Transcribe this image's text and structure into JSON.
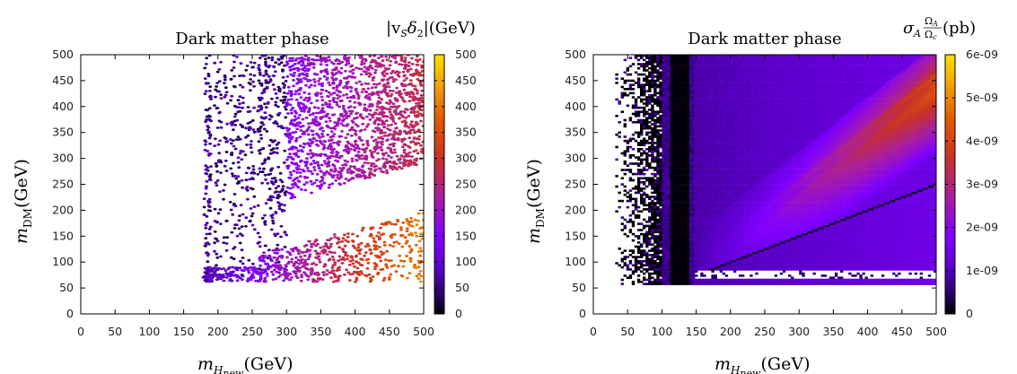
{
  "chart_data": [
    {
      "type": "scatter",
      "title": "Dark matter phase",
      "xlabel": {
        "symbol": "m",
        "sub_main": "H",
        "sub_sub": "new",
        "unit": "(GeV)"
      },
      "ylabel": {
        "symbol": "m",
        "sub": "DM",
        "unit": "(GeV)"
      },
      "xlim": [
        0,
        500
      ],
      "ylim": [
        0,
        500
      ],
      "x_ticks": [
        "0",
        "50",
        "100",
        "150",
        "200",
        "250",
        "300",
        "350",
        "400",
        "450",
        "500"
      ],
      "y_ticks": [
        "0",
        "50",
        "100",
        "150",
        "200",
        "250",
        "300",
        "350",
        "400",
        "450",
        "500"
      ],
      "colorbar": {
        "label": {
          "pre": "|v",
          "sub1": "S",
          "mid": "δ",
          "sub2": "2",
          "post": "|(GeV)"
        },
        "range": [
          0,
          500
        ],
        "ticks": [
          "0",
          "50",
          "100",
          "150",
          "200",
          "250",
          "300",
          "350",
          "400",
          "450",
          "500"
        ],
        "colormap": [
          "#000000",
          "#2a006a",
          "#5a00c8",
          "#8000ff",
          "#a81ea0",
          "#c83228",
          "#e05a00",
          "#f0a000",
          "#ffe000"
        ]
      },
      "regions": [
        {
          "name": "vertical bands",
          "x": [
            178,
            300
          ],
          "y": [
            65,
            500
          ],
          "color_value": 60
        },
        {
          "name": "upper wedge",
          "x": [
            300,
            500
          ],
          "y": [
            220,
            500
          ],
          "color_value": 200
        },
        {
          "name": "low-mass strip",
          "x": [
            178,
            500
          ],
          "y": [
            65,
            190
          ],
          "color_value": 250
        }
      ],
      "grid": false
    },
    {
      "type": "heatmap",
      "title": "Dark matter phase",
      "xlabel": {
        "symbol": "m",
        "sub_main": "H",
        "sub_sub": "new",
        "unit": "(GeV)"
      },
      "ylabel": {
        "symbol": "m",
        "sub": "DM",
        "unit": "(GeV)"
      },
      "xlim": [
        0,
        500
      ],
      "ylim": [
        0,
        500
      ],
      "x_ticks": [
        "0",
        "50",
        "100",
        "150",
        "200",
        "250",
        "300",
        "350",
        "400",
        "450",
        "500"
      ],
      "y_ticks": [
        "0",
        "50",
        "100",
        "150",
        "200",
        "250",
        "300",
        "350",
        "400",
        "450",
        "500"
      ],
      "colorbar": {
        "label": {
          "sigma": "σ",
          "sub": "A",
          "num": "Ω",
          "num_sub": "A",
          "den": "Ω",
          "den_sub": "c",
          "unit": "(pb)"
        },
        "range": [
          0,
          6e-09
        ],
        "ticks": [
          "0",
          "1e-09",
          "2e-09",
          "3e-09",
          "4e-09",
          "5e-09",
          "6e-09"
        ],
        "colormap": [
          "#000000",
          "#2a006a",
          "#5a00c8",
          "#8000ff",
          "#a81ea0",
          "#c83228",
          "#e05a00",
          "#f0a000",
          "#ffe000"
        ]
      },
      "features": [
        {
          "name": "dark band",
          "x": [
            110,
            140
          ],
          "y": [
            60,
            500
          ],
          "color_value": 0
        },
        {
          "name": "bright diagonal",
          "line_from": [
            150,
            100
          ],
          "line_to": [
            500,
            460
          ],
          "color_value": 3.5e-09
        },
        {
          "name": "lower diagonal",
          "line_from": [
            120,
            60
          ],
          "line_to": [
            500,
            250
          ],
          "color_value": 1e-09
        },
        {
          "name": "white gap",
          "x": [
            160,
            500
          ],
          "y": [
            68,
            85
          ]
        }
      ],
      "grid": false
    }
  ]
}
